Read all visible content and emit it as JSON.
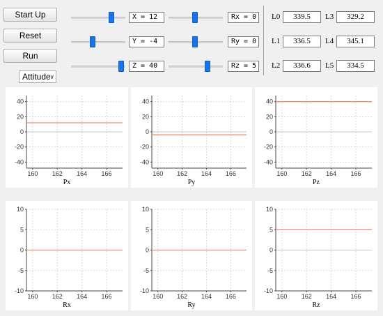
{
  "buttons": {
    "start": "Start Up",
    "reset": "Reset",
    "run": "Run"
  },
  "mode": {
    "selected": "Attitude",
    "chevron": "chevron-down-icon"
  },
  "sliders": [
    {
      "key": "x",
      "label": "X = 12",
      "value": 12
    },
    {
      "key": "y",
      "label": "Y = -4",
      "value": -4
    },
    {
      "key": "z",
      "label": "Z = 40",
      "value": 40
    },
    {
      "key": "rx",
      "label": "Rx = 0",
      "value": 0
    },
    {
      "key": "ry",
      "label": "Ry = 0",
      "value": 0
    },
    {
      "key": "rz",
      "label": "Rz = 5",
      "value": 5
    }
  ],
  "legs": [
    {
      "label": "L0",
      "value": "339.5"
    },
    {
      "label": "L1",
      "value": "336.5"
    },
    {
      "label": "L2",
      "value": "336.6"
    },
    {
      "label": "L3",
      "value": "329.2"
    },
    {
      "label": "L4",
      "value": "345.1"
    },
    {
      "label": "L5",
      "value": "334.5"
    }
  ],
  "colors": {
    "line": "#ef8a6e",
    "zero": "#c4c4c4",
    "grid": "#d8d8d8",
    "handle": "#1a73e8"
  },
  "chart_data": [
    {
      "type": "line",
      "xlabel": "Px",
      "xlim": [
        159.5,
        167.3
      ],
      "ylim": [
        -48,
        48
      ],
      "xticks": [
        160,
        162,
        164,
        166
      ],
      "yticks": [
        40,
        20,
        0,
        -20,
        -40
      ],
      "series": [
        {
          "x": [
            159.5,
            167.3
          ],
          "y": [
            12,
            12
          ]
        }
      ]
    },
    {
      "type": "line",
      "xlabel": "Py",
      "xlim": [
        159.5,
        167.3
      ],
      "ylim": [
        -48,
        48
      ],
      "xticks": [
        160,
        162,
        164,
        166
      ],
      "yticks": [
        40,
        20,
        0,
        -20,
        -40
      ],
      "series": [
        {
          "x": [
            159.5,
            167.3
          ],
          "y": [
            -4,
            -4
          ]
        }
      ]
    },
    {
      "type": "line",
      "xlabel": "Pz",
      "xlim": [
        159.5,
        167.3
      ],
      "ylim": [
        -48,
        48
      ],
      "xticks": [
        160,
        162,
        164,
        166
      ],
      "yticks": [
        40,
        20,
        0,
        -20,
        -40
      ],
      "series": [
        {
          "x": [
            159.5,
            167.3
          ],
          "y": [
            40,
            40
          ]
        }
      ]
    },
    {
      "type": "line",
      "xlabel": "Rx",
      "xlim": [
        159.5,
        167.3
      ],
      "ylim": [
        -10,
        10
      ],
      "xticks": [
        160,
        162,
        164,
        166
      ],
      "yticks": [
        10,
        5,
        0,
        -5,
        -10
      ],
      "series": [
        {
          "x": [
            159.5,
            167.3
          ],
          "y": [
            0,
            0
          ]
        }
      ]
    },
    {
      "type": "line",
      "xlabel": "Ry",
      "xlim": [
        159.5,
        167.3
      ],
      "ylim": [
        -10,
        10
      ],
      "xticks": [
        160,
        162,
        164,
        166
      ],
      "yticks": [
        10,
        5,
        0,
        -5,
        -10
      ],
      "series": [
        {
          "x": [
            159.5,
            167.3
          ],
          "y": [
            0,
            0
          ]
        }
      ]
    },
    {
      "type": "line",
      "xlabel": "Rz",
      "xlim": [
        159.5,
        167.3
      ],
      "ylim": [
        -10,
        10
      ],
      "xticks": [
        160,
        162,
        164,
        166
      ],
      "yticks": [
        10,
        5,
        0,
        -5,
        -10
      ],
      "series": [
        {
          "x": [
            159.5,
            167.3
          ],
          "y": [
            5,
            5
          ]
        }
      ]
    }
  ]
}
